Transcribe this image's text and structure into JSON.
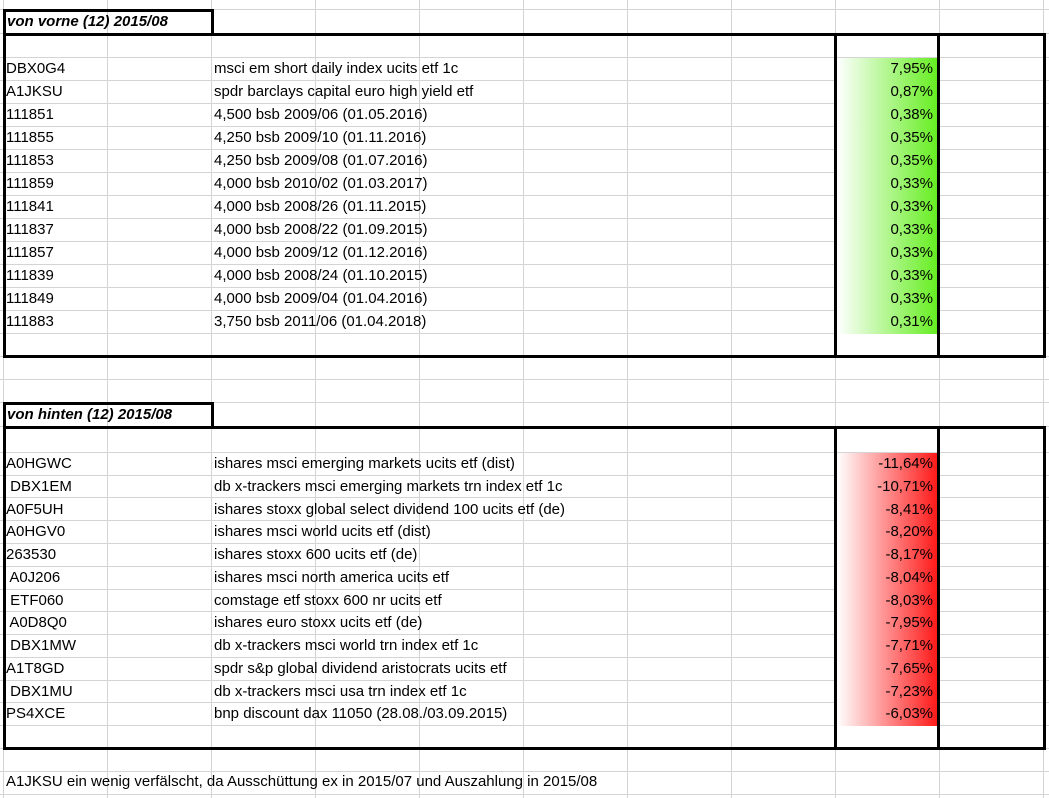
{
  "sections": [
    {
      "title": "von vorne (12) 2015/08",
      "bar_color": "#66ee22",
      "rows": [
        {
          "code": "DBX0G4",
          "name": "msci em short daily index ucits etf 1c",
          "value": "7,95%"
        },
        {
          "code": "A1JKSU",
          "name": "spdr barclays capital euro high yield etf",
          "value": "0,87%"
        },
        {
          "code": "111851",
          "name": "4,500 bsb 2009/06 (01.05.2016)",
          "value": "0,38%"
        },
        {
          "code": "111855",
          "name": "4,250 bsb 2009/10 (01.11.2016)",
          "value": "0,35%"
        },
        {
          "code": "111853",
          "name": "4,250 bsb 2009/08 (01.07.2016)",
          "value": "0,35%"
        },
        {
          "code": "111859",
          "name": "4,000 bsb 2010/02 (01.03.2017)",
          "value": "0,33%"
        },
        {
          "code": "111841",
          "name": "4,000 bsb 2008/26 (01.11.2015)",
          "value": "0,33%"
        },
        {
          "code": "111837",
          "name": "4,000 bsb 2008/22 (01.09.2015)",
          "value": "0,33%"
        },
        {
          "code": "111857",
          "name": "4,000 bsb 2009/12 (01.12.2016)",
          "value": "0,33%"
        },
        {
          "code": "111839",
          "name": "4,000 bsb 2008/24 (01.10.2015)",
          "value": "0,33%"
        },
        {
          "code": "111849",
          "name": "4,000 bsb 2009/04 (01.04.2016)",
          "value": "0,33%"
        },
        {
          "code": "111883",
          "name": "3,750 bsb 2011/06 (01.04.2018)",
          "value": "0,31%"
        }
      ]
    },
    {
      "title": "von hinten (12) 2015/08",
      "bar_color": "#ff1a1a",
      "rows": [
        {
          "code": "A0HGWC",
          "name": "ishares msci emerging markets ucits etf (dist)",
          "value": "-11,64%"
        },
        {
          "code": " DBX1EM",
          "name": "db x-trackers msci emerging markets trn index etf 1c",
          "value": "-10,71%"
        },
        {
          "code": "A0F5UH",
          "name": "ishares stoxx global select dividend 100 ucits etf (de)",
          "value": "-8,41%"
        },
        {
          "code": "A0HGV0",
          "name": "ishares msci world ucits etf (dist)",
          "value": "-8,20%"
        },
        {
          "code": "263530",
          "name": "ishares stoxx 600 ucits etf (de)",
          "value": "-8,17%"
        },
        {
          "code": " A0J206",
          "name": "ishares msci north america ucits etf",
          "value": "-8,04%"
        },
        {
          "code": " ETF060",
          "name": "comstage etf stoxx 600 nr ucits etf",
          "value": "-8,03%"
        },
        {
          "code": " A0D8Q0",
          "name": "ishares euro stoxx ucits etf (de)",
          "value": "-7,95%"
        },
        {
          "code": " DBX1MW",
          "name": "db x-trackers msci world trn index etf 1c",
          "value": "-7,71%"
        },
        {
          "code": "A1T8GD",
          "name": "spdr s&p global dividend aristocrats ucits etf",
          "value": "-7,65%"
        },
        {
          "code": " DBX1MU",
          "name": "db x-trackers msci usa trn index etf 1c",
          "value": "-7,23%"
        },
        {
          "code": "PS4XCE",
          "name": "bnp discount dax 11050 (28.08./03.09.2015)",
          "value": "-6,03%"
        }
      ]
    }
  ],
  "footer_note": "A1JKSU ein wenig verfälscht, da Ausschüttung ex in 2015/07 und Auszahlung in 2015/08"
}
